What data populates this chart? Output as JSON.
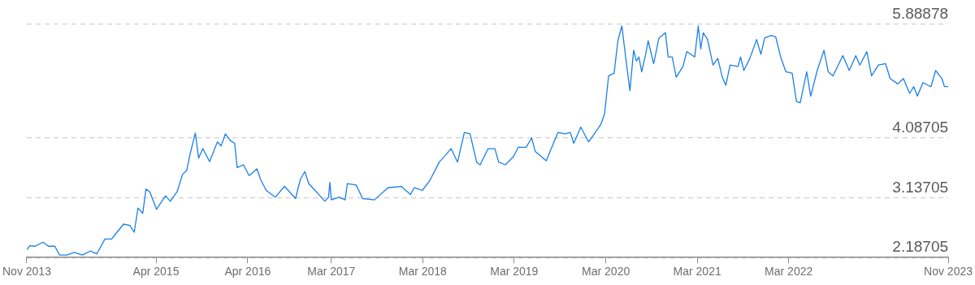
{
  "chart_data": {
    "type": "line",
    "x": [
      "2013-11-01",
      "2013-11-13",
      "2013-12-04",
      "2014-01-05",
      "2014-01-26",
      "2014-02-21",
      "2014-03-12",
      "2014-04-09",
      "2014-05-10",
      "2014-06-11",
      "2014-07-12",
      "2014-08-08",
      "2014-09-09",
      "2014-10-06",
      "2014-10-27",
      "2014-11-23",
      "2014-12-18",
      "2015-01-04",
      "2015-01-19",
      "2015-02-07",
      "2015-02-20",
      "2015-03-07",
      "2015-04-03",
      "2015-05-09",
      "2015-05-28",
      "2015-06-24",
      "2015-07-16",
      "2015-08-02",
      "2015-08-15",
      "2015-09-05",
      "2015-09-18",
      "2015-10-05",
      "2015-11-01",
      "2015-12-02",
      "2015-12-17",
      "2016-01-03",
      "2016-01-23",
      "2016-02-09",
      "2016-02-19",
      "2016-03-15",
      "2016-04-07",
      "2016-05-08",
      "2016-05-23",
      "2016-06-14",
      "2016-07-20",
      "2016-08-26",
      "2016-10-09",
      "2016-10-28",
      "2016-11-15",
      "2016-12-01",
      "2016-12-26",
      "2017-02-03",
      "2017-02-18",
      "2017-02-23",
      "2017-03-01",
      "2017-04-01",
      "2017-04-25",
      "2017-05-04",
      "2017-06-08",
      "2017-07-04",
      "2017-08-20",
      "2017-10-13",
      "2017-12-05",
      "2018-01-11",
      "2018-01-26",
      "2018-02-27",
      "2018-03-28",
      "2018-05-06",
      "2018-05-25",
      "2018-06-22",
      "2018-07-18",
      "2018-08-14",
      "2018-09-06",
      "2018-10-02",
      "2018-10-16",
      "2018-11-17",
      "2018-12-14",
      "2018-12-29",
      "2019-01-25",
      "2019-02-26",
      "2019-03-17",
      "2019-04-18",
      "2019-05-10",
      "2019-05-24",
      "2019-07-07",
      "2019-07-27",
      "2019-08-23",
      "2019-09-19",
      "2019-10-11",
      "2019-10-25",
      "2019-11-22",
      "2019-12-23",
      "2020-01-19",
      "2020-02-10",
      "2020-02-25",
      "2020-03-12",
      "2020-04-03",
      "2020-04-18",
      "2020-05-04",
      "2020-05-19",
      "2020-06-05",
      "2020-06-20",
      "2020-07-01",
      "2020-07-11",
      "2020-07-22",
      "2020-08-07",
      "2020-08-17",
      "2020-09-08",
      "2020-09-29",
      "2020-10-25",
      "2020-11-05",
      "2020-11-21",
      "2020-12-07",
      "2021-01-03",
      "2021-01-18",
      "2021-02-19",
      "2021-03-05",
      "2021-03-15",
      "2021-03-25",
      "2021-04-11",
      "2021-05-03",
      "2021-05-22",
      "2021-06-09",
      "2021-06-23",
      "2021-07-10",
      "2021-08-11",
      "2021-08-21",
      "2021-09-03",
      "2021-09-27",
      "2021-10-24",
      "2021-11-10",
      "2021-11-25",
      "2021-12-21",
      "2022-01-08",
      "2022-01-28",
      "2022-02-18",
      "2022-03-15",
      "2022-04-01",
      "2022-04-16",
      "2022-05-12",
      "2022-05-28",
      "2022-06-23",
      "2022-07-20",
      "2022-08-06",
      "2022-08-25",
      "2022-10-03",
      "2022-10-29",
      "2022-11-24",
      "2022-12-10",
      "2023-01-07",
      "2023-01-26",
      "2023-02-22",
      "2023-03-23",
      "2023-04-10",
      "2023-05-11",
      "2023-06-02",
      "2023-06-27",
      "2023-07-13",
      "2023-07-28",
      "2023-08-19",
      "2023-09-20",
      "2023-10-09",
      "2023-11-03",
      "2023-11-13",
      "2023-11-28"
    ],
    "series": [
      {
        "color": "#1a7fe8",
        "values": [
          2.311,
          2.375,
          2.367,
          2.431,
          2.367,
          2.367,
          2.226,
          2.226,
          2.268,
          2.226,
          2.29,
          2.247,
          2.482,
          2.482,
          2.589,
          2.718,
          2.696,
          2.589,
          2.974,
          2.889,
          3.274,
          3.231,
          2.953,
          3.167,
          3.081,
          3.231,
          3.509,
          3.573,
          3.83,
          4.164,
          3.766,
          3.916,
          3.71,
          4.023,
          3.959,
          4.151,
          4.044,
          4.001,
          3.616,
          3.659,
          3.488,
          3.595,
          3.424,
          3.253,
          3.146,
          3.317,
          3.124,
          3.424,
          3.552,
          3.36,
          3.253,
          3.081,
          3.146,
          3.381,
          3.103,
          3.146,
          3.103,
          3.36,
          3.338,
          3.124,
          3.103,
          3.295,
          3.317,
          3.188,
          3.295,
          3.253,
          3.402,
          3.702,
          3.787,
          3.916,
          3.702,
          4.173,
          4.151,
          3.702,
          3.659,
          3.916,
          3.916,
          3.702,
          3.659,
          3.787,
          3.937,
          3.937,
          4.087,
          3.873,
          3.723,
          3.916,
          4.173,
          4.151,
          4.173,
          4.001,
          4.258,
          4.023,
          4.173,
          4.301,
          4.472,
          5.071,
          5.114,
          5.628,
          5.863,
          5.371,
          4.836,
          5.478,
          5.307,
          5.371,
          5.135,
          5.414,
          5.628,
          5.264,
          5.67,
          5.756,
          5.371,
          5.371,
          5.05,
          5.221,
          5.456,
          5.371,
          5.863,
          5.499,
          5.756,
          5.649,
          5.242,
          5.349,
          5.05,
          4.921,
          5.242,
          5.221,
          5.371,
          5.157,
          5.349,
          5.649,
          5.414,
          5.67,
          5.713,
          5.692,
          5.371,
          5.135,
          5.114,
          4.665,
          4.643,
          5.135,
          4.75,
          5.157,
          5.478,
          5.135,
          5.071,
          5.392,
          5.157,
          5.392,
          5.242,
          5.456,
          5.071,
          5.242,
          5.264,
          5.028,
          4.943,
          5.028,
          4.793,
          4.9,
          4.75,
          4.964,
          4.9,
          5.157,
          5.028,
          4.9,
          4.9
        ]
      }
    ],
    "xlim": [
      "2013-11-01",
      "2023-11-28"
    ],
    "xticks": [
      {
        "value": "2013-11-01",
        "label": "Nov 2013"
      },
      {
        "value": "2015-04-01",
        "label": "Apr 2015"
      },
      {
        "value": "2016-04-01",
        "label": "Apr 2016"
      },
      {
        "value": "2017-03-01",
        "label": "Mar 2017"
      },
      {
        "value": "2018-03-01",
        "label": "Mar 2018"
      },
      {
        "value": "2019-03-01",
        "label": "Mar 2019"
      },
      {
        "value": "2020-03-01",
        "label": "Mar 2020"
      },
      {
        "value": "2021-03-01",
        "label": "Mar 2021"
      },
      {
        "value": "2022-03-01",
        "label": "Mar 2022"
      },
      {
        "value": "2023-11-28",
        "label": "Nov 2023"
      }
    ],
    "ylim": [
      2.18705,
      5.88878
    ],
    "yticks": [
      2.18705,
      3.13705,
      4.08705,
      5.88878
    ],
    "grid": "y",
    "marker": "none",
    "line_style": "solid"
  }
}
